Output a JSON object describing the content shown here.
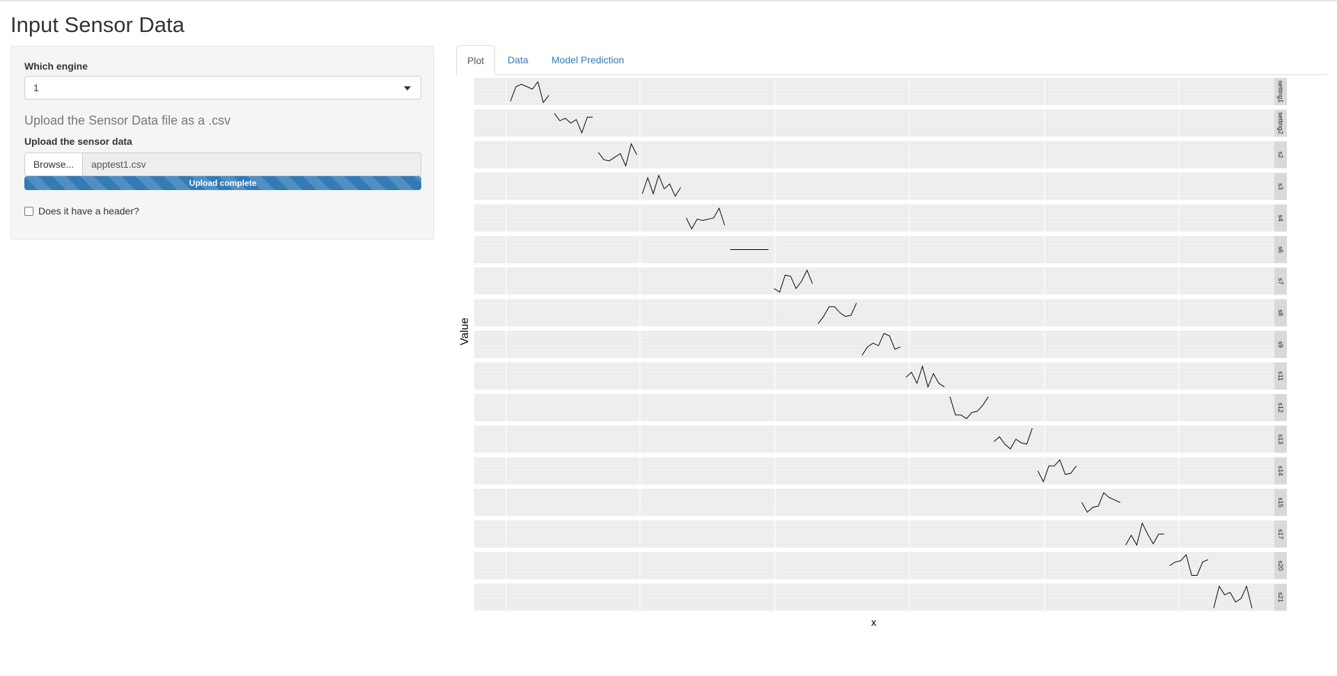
{
  "page": {
    "title": "Input Sensor Data"
  },
  "sidebar": {
    "engine_label": "Which engine",
    "engine_value": "1",
    "upload_heading": "Upload the Sensor Data file as a .csv",
    "upload_label": "Upload the sensor data",
    "browse_label": "Browse...",
    "file_name": "apptest1.csv",
    "progress_text": "Upload complete",
    "progress_fraction": 1.0,
    "header_checkbox_label": "Does it have a header?",
    "header_checked": false
  },
  "tabs": [
    {
      "label": "Plot",
      "active": true
    },
    {
      "label": "Data",
      "active": false
    },
    {
      "label": "Model Prediction",
      "active": false
    }
  ],
  "colors": {
    "accent": "#337ab7",
    "panel_bg": "#eaeaea",
    "strip_bg": "#d9d9d9",
    "line": "#000000"
  },
  "chart_data": {
    "type": "line",
    "xlabel": "x",
    "ylabel": "Value",
    "facet_labels": [
      "setting1",
      "setting2",
      "s2",
      "s3",
      "s4",
      "s6",
      "s7",
      "s8",
      "s9",
      "s11",
      "s12",
      "s13",
      "s14",
      "s15",
      "s17",
      "s20",
      "s21"
    ],
    "series": [
      {
        "name": "setting1",
        "values": [
          0.1,
          0.7,
          0.8,
          0.7,
          0.6,
          0.9,
          0.05,
          0.35
        ]
      },
      {
        "name": "setting2",
        "values": [
          0.9,
          0.6,
          0.7,
          0.5,
          0.65,
          0.1,
          0.75,
          0.75
        ]
      },
      {
        "name": "s2",
        "values": [
          0.6,
          0.3,
          0.25,
          0.4,
          0.55,
          0.05,
          0.95,
          0.5
        ]
      },
      {
        "name": "s3",
        "values": [
          0.2,
          0.85,
          0.2,
          0.95,
          0.4,
          0.6,
          0.1,
          0.45
        ]
      },
      {
        "name": "s4",
        "values": [
          0.5,
          0.05,
          0.45,
          0.4,
          0.45,
          0.5,
          0.9,
          0.2
        ]
      },
      {
        "name": "s6",
        "values": [
          0.5,
          0.5,
          0.5,
          0.5,
          0.5,
          0.5,
          0.5,
          0.5
        ]
      },
      {
        "name": "s7",
        "values": [
          0.2,
          0.05,
          0.75,
          0.7,
          0.2,
          0.5,
          0.95,
          0.4
        ]
      },
      {
        "name": "s8",
        "values": [
          0.05,
          0.35,
          0.75,
          0.75,
          0.5,
          0.35,
          0.4,
          0.9
        ]
      },
      {
        "name": "s9",
        "values": [
          0.05,
          0.4,
          0.55,
          0.45,
          0.95,
          0.85,
          0.3,
          0.4
        ]
      },
      {
        "name": "s11",
        "values": [
          0.45,
          0.65,
          0.2,
          0.9,
          0.05,
          0.6,
          0.2,
          0.05
        ]
      },
      {
        "name": "s12",
        "values": [
          0.95,
          0.2,
          0.2,
          0.05,
          0.3,
          0.35,
          0.6,
          0.95
        ]
      },
      {
        "name": "s13",
        "values": [
          0.4,
          0.6,
          0.3,
          0.1,
          0.5,
          0.35,
          0.3,
          0.95
        ]
      },
      {
        "name": "s14",
        "values": [
          0.5,
          0.05,
          0.7,
          0.7,
          0.95,
          0.35,
          0.4,
          0.7
        ]
      },
      {
        "name": "s15",
        "values": [
          0.5,
          0.1,
          0.3,
          0.35,
          0.9,
          0.7,
          0.6,
          0.5
        ]
      },
      {
        "name": "s17",
        "values": [
          0.05,
          0.45,
          0.05,
          0.95,
          0.5,
          0.1,
          0.5,
          0.5
        ]
      },
      {
        "name": "s20",
        "values": [
          0.5,
          0.65,
          0.7,
          0.95,
          0.1,
          0.1,
          0.65,
          0.75
        ]
      },
      {
        "name": "s21",
        "values": [
          0.05,
          0.95,
          0.6,
          0.7,
          0.3,
          0.45,
          0.95,
          0.05
        ]
      }
    ]
  }
}
